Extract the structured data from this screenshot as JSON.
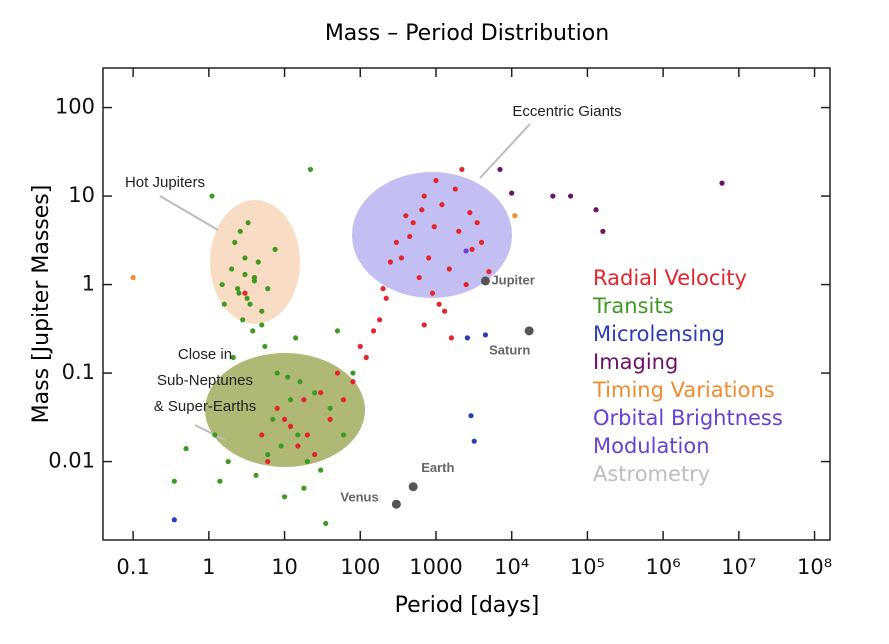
{
  "chart_data": {
    "type": "scatter",
    "title": "Mass – Period Distribution",
    "x_label": "Period [days]",
    "y_label": "Mass [Jupiter Masses]",
    "xlog": true,
    "ylog": true,
    "xlim": [
      0.04,
      160000000
    ],
    "ylim": [
      0.0013,
      280
    ],
    "xticks": [
      0.1,
      1,
      10,
      100,
      1000,
      {
        "value": 10000,
        "label": "10⁴"
      },
      {
        "value": 100000,
        "label": "10⁵"
      },
      {
        "value": 1000000,
        "label": "10⁶"
      },
      {
        "value": 10000000,
        "label": "10⁷"
      },
      {
        "value": 100000000,
        "label": "10⁸"
      }
    ],
    "yticks": [
      0.01,
      0.1,
      1,
      10,
      100
    ],
    "series": [
      {
        "name": "Radial Velocity",
        "color": "#e3262c",
        "x": [
          300,
          500,
          800,
          1200,
          2000,
          1500,
          900,
          600,
          400,
          3000,
          700,
          1100,
          2500,
          450,
          350,
          250,
          1800,
          1300,
          950,
          650,
          4000,
          200,
          150,
          120,
          80,
          60,
          40,
          20,
          15,
          10,
          5,
          4,
          3,
          30,
          50,
          25,
          12,
          8,
          6,
          18,
          100,
          180,
          220,
          3500,
          2200,
          1000,
          700,
          5000,
          1600,
          2800
        ],
        "values": [
          3,
          5,
          2,
          8,
          4,
          1.5,
          0.8,
          1.2,
          6,
          2.5,
          10,
          0.6,
          1,
          3.5,
          2,
          1.8,
          12,
          0.5,
          4.5,
          7,
          3,
          0.9,
          0.3,
          0.15,
          0.08,
          0.05,
          0.03,
          0.02,
          0.015,
          0.03,
          0.02,
          1.2,
          0.8,
          0.06,
          0.1,
          0.012,
          0.025,
          0.04,
          0.01,
          0.05,
          0.2,
          0.4,
          0.7,
          5,
          20,
          15,
          0.35,
          1.4,
          0.25,
          6.5
        ]
      },
      {
        "name": "Transits",
        "color": "#3f9a23",
        "x": [
          1.5,
          2,
          2.5,
          3,
          3.5,
          4,
          5,
          6,
          2.2,
          3.2,
          4.5,
          2.8,
          1.2,
          1.8,
          7,
          9,
          12,
          15,
          20,
          30,
          8,
          5.5,
          3.8,
          2.6,
          1.1,
          1.4,
          10,
          14,
          25,
          40,
          60,
          6,
          4.2,
          3.3,
          2.1,
          18,
          11,
          7.5,
          5,
          4,
          3,
          2.4,
          1.6,
          50,
          80,
          35,
          0.35,
          0.5,
          16,
          22
        ],
        "values": [
          1,
          1.5,
          0.8,
          2,
          0.6,
          1.2,
          0.5,
          0.9,
          3,
          0.7,
          1.8,
          0.4,
          0.02,
          0.01,
          0.03,
          0.015,
          0.05,
          0.02,
          0.01,
          0.008,
          0.1,
          0.2,
          0.3,
          4,
          10,
          0.006,
          0.004,
          0.25,
          0.06,
          0.04,
          0.02,
          0.012,
          0.007,
          5,
          0.15,
          0.005,
          0.09,
          2.5,
          0.35,
          1.1,
          1.3,
          0.9,
          0.6,
          0.3,
          0.1,
          0.002,
          0.006,
          0.014,
          0.08,
          20
        ]
      },
      {
        "name": "Microlensing",
        "color": "#2a3cba",
        "x": [
          2600,
          4500,
          2900,
          3200,
          0.35
        ],
        "values": [
          0.25,
          0.27,
          0.033,
          0.017,
          0.0022
        ]
      },
      {
        "name": "Imaging",
        "color": "#6b1168",
        "x": [
          7000,
          10000,
          35000,
          60000,
          130000,
          160000,
          6000000
        ],
        "values": [
          20,
          10.8,
          10,
          10,
          7,
          4,
          14
        ]
      },
      {
        "name": "Timing Variations",
        "color": "#f08c2c",
        "x": [
          0.1,
          11000
        ],
        "values": [
          1.2,
          6
        ]
      },
      {
        "name": "Orbital Brightness Modulation",
        "color": "#6a3fd6",
        "x": [
          2500
        ],
        "values": [
          2.4
        ]
      },
      {
        "name": "Astrometry",
        "color": "#bdbdbd",
        "x": [],
        "values": []
      }
    ],
    "annotations": [
      "Eccentric Giants",
      "Hot Jupiters"
    ],
    "annotation_lines": [
      "Close in",
      "Sub-Neptunes",
      "& Super-Earths"
    ],
    "planets": [
      {
        "name": "Jupiter",
        "x": 4500,
        "y": 1.1
      },
      {
        "name": "Saturn",
        "x": 17000,
        "y": 0.3
      },
      {
        "name": "Earth",
        "x": 500,
        "y": 0.0052
      },
      {
        "name": "Venus",
        "x": 300,
        "y": 0.0033
      }
    ]
  }
}
